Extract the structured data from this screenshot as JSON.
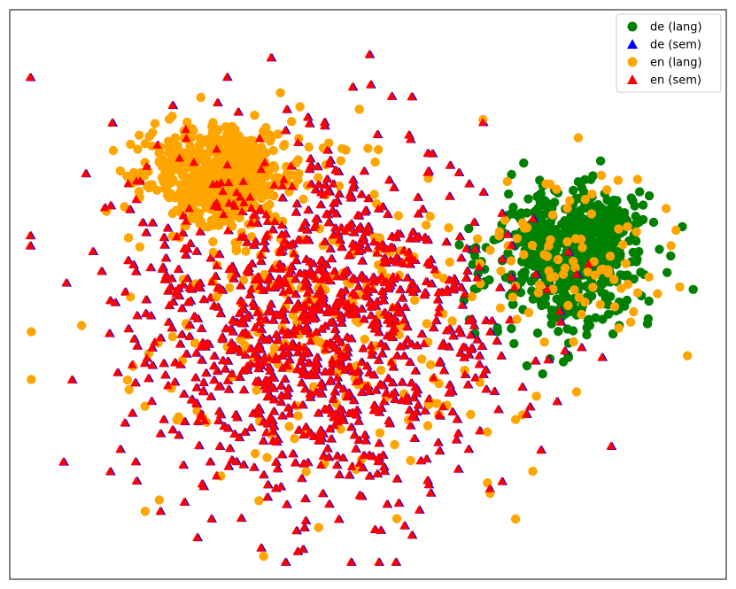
{
  "chart_data": {
    "type": "scatter",
    "title": "",
    "xlabel": "",
    "ylabel": "",
    "grid": false,
    "axes_ticks": false,
    "xlim": [
      0,
      100
    ],
    "ylim": [
      0,
      100
    ],
    "legend": {
      "placement": "top-right",
      "entries": [
        {
          "label": "de (lang)",
          "marker": "circle",
          "color": "#008000"
        },
        {
          "label": "de (sem)",
          "marker": "triangle",
          "color": "#0000ff"
        },
        {
          "label": "en (lang)",
          "marker": "circle",
          "color": "#ffa500"
        },
        {
          "label": "en (sem)",
          "marker": "triangle",
          "color": "#ff0000"
        }
      ]
    },
    "series": [
      {
        "name": "de (lang)",
        "marker": "circle",
        "color": "#008000",
        "clusters": [
          {
            "center": [
              78,
              44
            ],
            "spread": [
              9,
              11
            ],
            "count": 520
          },
          {
            "center": [
              82,
              39
            ],
            "spread": [
              5,
              5
            ],
            "count": 140
          }
        ]
      },
      {
        "name": "de (sem)",
        "marker": "triangle",
        "color": "#0000ff",
        "clusters": [
          {
            "center": [
              43,
              55
            ],
            "spread": [
              21,
              28
            ],
            "count": 1150
          }
        ]
      },
      {
        "name": "en (lang)",
        "marker": "circle",
        "color": "#ffa500",
        "clusters": [
          {
            "center": [
              29,
              29
            ],
            "spread": [
              8,
              7
            ],
            "count": 650
          },
          {
            "center": [
              43,
              55
            ],
            "spread": [
              21,
              28
            ],
            "count": 260
          },
          {
            "center": [
              78,
              44
            ],
            "spread": [
              12,
              14
            ],
            "count": 90
          }
        ]
      },
      {
        "name": "en (sem)",
        "marker": "triangle",
        "color": "#ff0000",
        "clusters": [
          {
            "center": [
              43,
              55
            ],
            "spread": [
              21,
              28
            ],
            "count": 1150
          }
        ]
      }
    ]
  }
}
